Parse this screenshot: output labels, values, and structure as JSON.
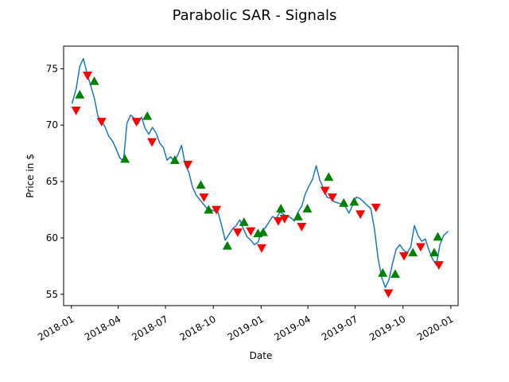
{
  "chart_data": {
    "type": "line",
    "title": "Parabolic SAR - Signals",
    "xlabel": "Date",
    "ylabel": "Price in $",
    "xlim": [
      "2017-12-17",
      "2020-01-15"
    ],
    "ylim": [
      54.0,
      77.0
    ],
    "x_ticks": [
      "2018-01",
      "2018-04",
      "2018-07",
      "2018-10",
      "2019-01",
      "2019-04",
      "2019-07",
      "2019-10",
      "2020-01"
    ],
    "y_ticks": [
      55,
      60,
      65,
      70,
      75
    ],
    "grid": false,
    "colors": {
      "line": "#1f77b4",
      "buy": "#008000",
      "sell": "#ff0000"
    },
    "price_series": {
      "name": "",
      "x": [
        "2018-01-02",
        "2018-01-10",
        "2018-01-17",
        "2018-01-24",
        "2018-01-31",
        "2018-02-07",
        "2018-02-14",
        "2018-02-21",
        "2018-02-28",
        "2018-03-07",
        "2018-03-14",
        "2018-03-21",
        "2018-03-28",
        "2018-04-04",
        "2018-04-11",
        "2018-04-18",
        "2018-04-25",
        "2018-05-02",
        "2018-05-09",
        "2018-05-16",
        "2018-05-23",
        "2018-05-30",
        "2018-06-06",
        "2018-06-13",
        "2018-06-20",
        "2018-06-27",
        "2018-07-04",
        "2018-07-11",
        "2018-07-18",
        "2018-07-25",
        "2018-08-01",
        "2018-08-08",
        "2018-08-15",
        "2018-08-22",
        "2018-08-29",
        "2018-09-05",
        "2018-09-12",
        "2018-09-19",
        "2018-09-26",
        "2018-10-03",
        "2018-10-10",
        "2018-10-17",
        "2018-10-24",
        "2018-10-31",
        "2018-11-07",
        "2018-11-14",
        "2018-11-21",
        "2018-11-28",
        "2018-12-05",
        "2018-12-12",
        "2018-12-19",
        "2018-12-26",
        "2019-01-02",
        "2019-01-09",
        "2019-01-16",
        "2019-01-23",
        "2019-01-30",
        "2019-02-06",
        "2019-02-13",
        "2019-02-20",
        "2019-02-27",
        "2019-03-06",
        "2019-03-13",
        "2019-03-20",
        "2019-03-27",
        "2019-04-03",
        "2019-04-10",
        "2019-04-17",
        "2019-04-24",
        "2019-05-01",
        "2019-05-08",
        "2019-05-15",
        "2019-05-22",
        "2019-05-29",
        "2019-06-05",
        "2019-06-12",
        "2019-06-19",
        "2019-06-26",
        "2019-07-03",
        "2019-07-10",
        "2019-07-17",
        "2019-07-24",
        "2019-07-31",
        "2019-08-07",
        "2019-08-14",
        "2019-08-21",
        "2019-08-28",
        "2019-09-04",
        "2019-09-11",
        "2019-09-18",
        "2019-09-25",
        "2019-10-02",
        "2019-10-09",
        "2019-10-16",
        "2019-10-23",
        "2019-10-30",
        "2019-11-06",
        "2019-11-13",
        "2019-11-20",
        "2019-11-27",
        "2019-12-04",
        "2019-12-11",
        "2019-12-18",
        "2019-12-27"
      ],
      "y": [
        71.9,
        73.2,
        75.2,
        75.9,
        74.6,
        73.5,
        72.4,
        70.8,
        70.4,
        69.8,
        69.0,
        68.6,
        67.9,
        67.1,
        66.8,
        70.2,
        70.9,
        70.6,
        70.1,
        70.7,
        69.7,
        69.2,
        69.8,
        69.3,
        68.4,
        68.0,
        66.9,
        67.2,
        66.8,
        67.4,
        68.2,
        66.5,
        65.8,
        64.5,
        63.8,
        63.4,
        63.0,
        62.6,
        62.5,
        62.4,
        62.3,
        61.1,
        59.8,
        60.3,
        60.8,
        61.1,
        61.6,
        60.8,
        60.1,
        59.8,
        59.4,
        59.6,
        60.6,
        60.9,
        61.4,
        61.9,
        61.7,
        62.3,
        62.1,
        61.9,
        61.8,
        61.5,
        62.3,
        62.8,
        63.9,
        64.6,
        65.2,
        66.4,
        65.1,
        64.4,
        63.6,
        63.5,
        63.2,
        63.1,
        63.0,
        62.8,
        62.2,
        62.9,
        63.6,
        63.5,
        63.2,
        62.9,
        62.6,
        60.8,
        58.2,
        56.5,
        55.6,
        56.3,
        57.8,
        59.0,
        59.4,
        58.9,
        58.7,
        59.2,
        61.1,
        60.2,
        59.7,
        59.9,
        58.9,
        58.1,
        57.6,
        59.4,
        60.2,
        60.6
      ]
    },
    "buy_signals": {
      "name": "",
      "x": [
        "2018-01-17",
        "2018-02-14",
        "2018-04-14",
        "2018-05-27",
        "2018-07-19",
        "2018-09-07",
        "2018-09-22",
        "2018-10-28",
        "2018-11-29",
        "2018-12-26",
        "2019-01-05",
        "2019-02-08",
        "2019-03-13",
        "2019-03-31",
        "2019-05-11",
        "2019-06-09",
        "2019-06-29",
        "2019-08-23",
        "2019-09-16",
        "2019-10-20",
        "2019-11-30",
        "2019-12-07"
      ],
      "y": [
        72.7,
        73.9,
        67.0,
        70.8,
        66.9,
        64.7,
        62.5,
        59.3,
        61.4,
        60.4,
        60.5,
        62.6,
        61.9,
        62.6,
        65.4,
        63.1,
        63.2,
        56.9,
        56.8,
        58.7,
        58.7,
        60.1
      ]
    },
    "sell_signals": {
      "name": "",
      "x": [
        "2018-01-10",
        "2018-02-01",
        "2018-02-28",
        "2018-05-06",
        "2018-06-05",
        "2018-08-13",
        "2018-09-13",
        "2018-10-07",
        "2018-11-17",
        "2018-12-12",
        "2019-01-02",
        "2019-02-03",
        "2019-02-15",
        "2019-03-20",
        "2019-05-04",
        "2019-05-18",
        "2019-07-11",
        "2019-08-10",
        "2019-09-03",
        "2019-10-03",
        "2019-11-04",
        "2019-12-09"
      ],
      "y": [
        71.3,
        74.4,
        70.3,
        70.3,
        68.5,
        66.5,
        63.6,
        62.5,
        60.5,
        60.6,
        59.1,
        61.5,
        61.7,
        61.0,
        64.2,
        63.6,
        62.1,
        62.7,
        55.1,
        58.4,
        59.2,
        57.6
      ]
    }
  }
}
